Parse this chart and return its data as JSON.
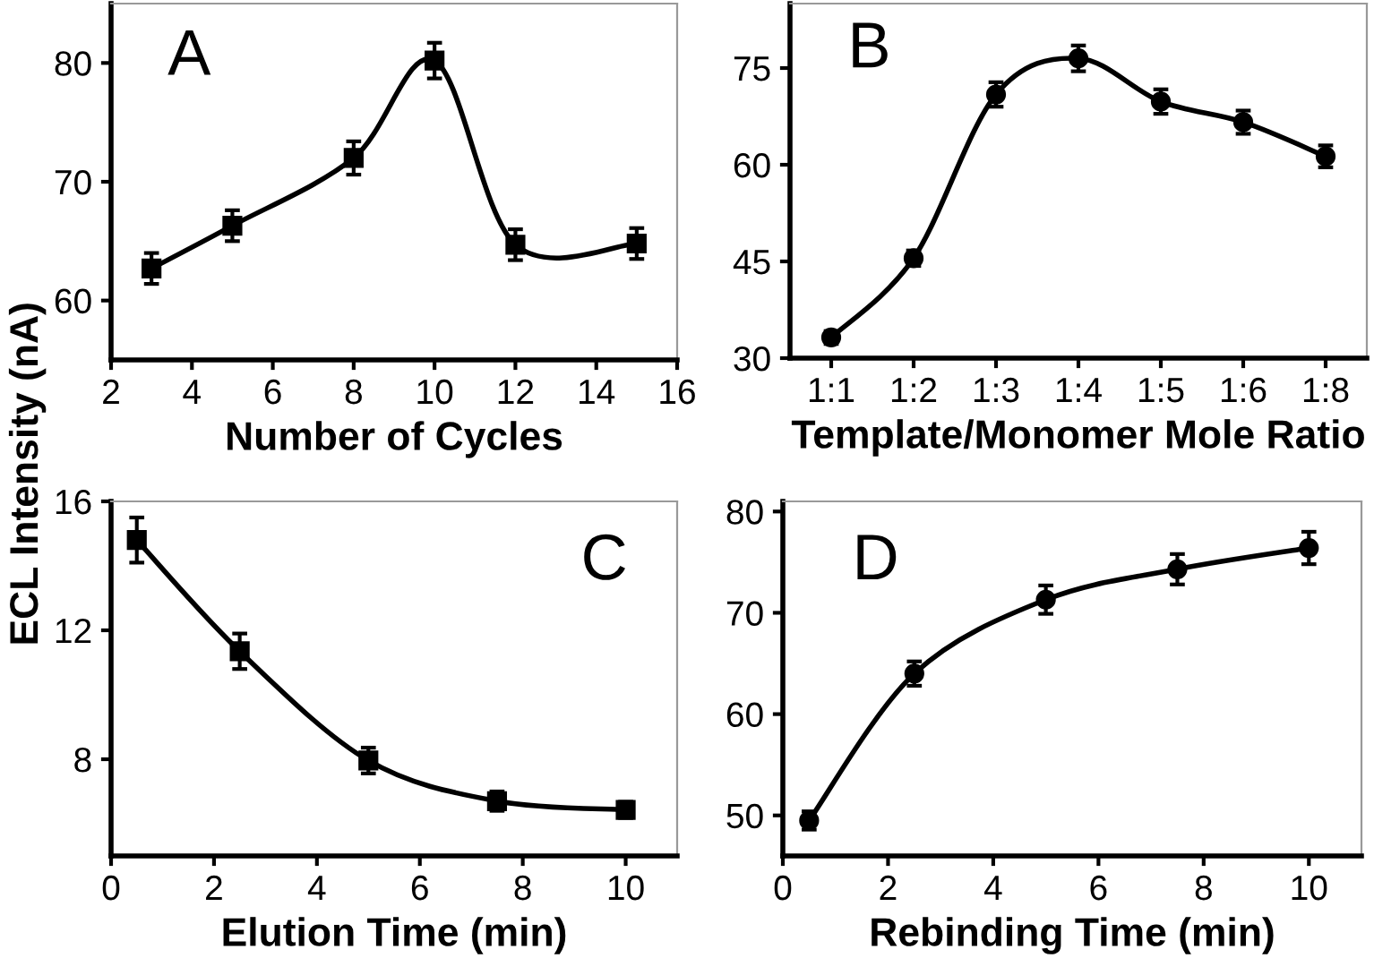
{
  "chart_data": [
    {
      "type": "line",
      "xlabel": "Number of Cycles",
      "ylabel": "ECL Intensity (nA)",
      "annotations": [
        "A"
      ],
      "x": [
        3,
        5,
        8,
        10,
        12,
        15
      ],
      "xlim": [
        2,
        16
      ],
      "xticks": [
        2,
        4,
        6,
        8,
        10,
        12,
        14,
        16
      ],
      "ylim": [
        55,
        85
      ],
      "yticks": [
        60,
        70,
        80
      ],
      "marker": "square",
      "grid": false,
      "legend": false,
      "series": [
        {
          "color": "#000000",
          "values": [
            62.7,
            66.3,
            72.0,
            80.2,
            64.7,
            64.8
          ],
          "errors": [
            1.3,
            1.3,
            1.4,
            1.5,
            1.3,
            1.3
          ]
        }
      ]
    },
    {
      "type": "line",
      "xlabel": "Template/Monomer Mole Ratio",
      "annotations": [
        "B"
      ],
      "categories": [
        "1:1",
        "1:2",
        "1:3",
        "1:4",
        "1:5",
        "1:6",
        "1:8"
      ],
      "ylim": [
        30,
        85
      ],
      "yticks": [
        30,
        45,
        60,
        75
      ],
      "marker": "circle",
      "grid": false,
      "legend": false,
      "series": [
        {
          "color": "#000000",
          "values": [
            33.2,
            45.5,
            70.9,
            76.5,
            69.8,
            66.6,
            61.3
          ],
          "errors": [
            1.0,
            1.2,
            1.9,
            2.0,
            1.9,
            1.8,
            1.7
          ]
        }
      ]
    },
    {
      "type": "line",
      "xlabel": "Elution Time (min)",
      "annotations": [
        "C"
      ],
      "x": [
        0.5,
        2.5,
        5,
        7.5,
        10
      ],
      "xlim": [
        0,
        11
      ],
      "xticks": [
        0,
        2,
        4,
        6,
        8,
        10
      ],
      "ylim": [
        5,
        16
      ],
      "yticks": [
        8,
        12,
        16
      ],
      "marker": "square",
      "grid": false,
      "legend": false,
      "series": [
        {
          "color": "#000000",
          "values": [
            14.8,
            11.35,
            7.96,
            6.7,
            6.43
          ],
          "errors": [
            0.7,
            0.55,
            0.4,
            0.3,
            0.25
          ]
        }
      ]
    },
    {
      "type": "line",
      "xlabel": "Rebinding Time (min)",
      "annotations": [
        "D"
      ],
      "x": [
        0.5,
        2.5,
        5,
        7.5,
        10
      ],
      "xlim": [
        0,
        11
      ],
      "xticks": [
        0,
        2,
        4,
        6,
        8,
        10
      ],
      "ylim": [
        46,
        81
      ],
      "yticks": [
        50,
        60,
        70,
        80
      ],
      "marker": "circle",
      "grid": false,
      "legend": false,
      "series": [
        {
          "color": "#000000",
          "values": [
            49.5,
            64.0,
            71.3,
            74.3,
            76.4
          ],
          "errors": [
            0.9,
            1.2,
            1.4,
            1.5,
            1.6
          ]
        }
      ]
    }
  ]
}
